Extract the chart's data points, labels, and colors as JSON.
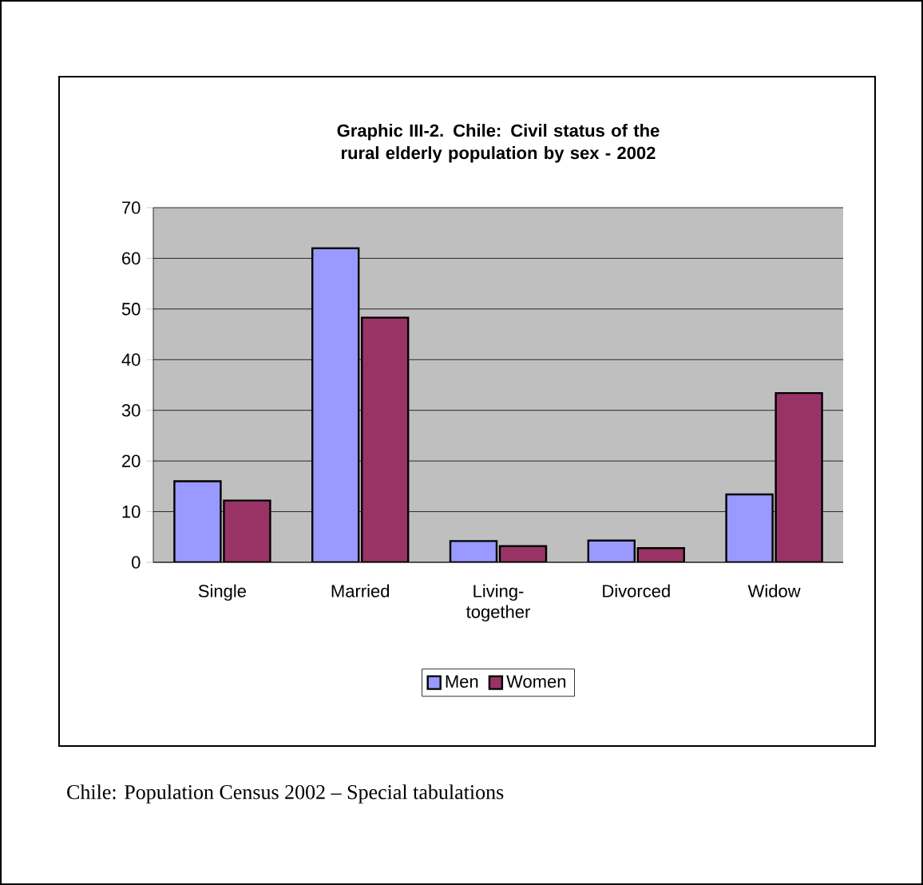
{
  "chart_data": {
    "type": "bar",
    "title": "Graphic III-2. Chile: Civil status of the rural elderly population by sex - 2002",
    "categories": [
      "Single",
      "Married",
      "Living-together",
      "Divorced",
      "Widow"
    ],
    "series": [
      {
        "name": "Men",
        "color": "#9999ff",
        "values": [
          16,
          62,
          4.2,
          4.3,
          13.4
        ]
      },
      {
        "name": "Women",
        "color": "#993366",
        "values": [
          12.2,
          48.3,
          3.2,
          2.8,
          33.4
        ]
      }
    ],
    "ylim": [
      0,
      70
    ],
    "yticks": [
      0,
      10,
      20,
      30,
      40,
      50,
      60,
      70
    ],
    "grid": "y",
    "legend": "bottom",
    "annotations": [
      "Chile: Population Census 2002 – Special tabulations"
    ]
  }
}
